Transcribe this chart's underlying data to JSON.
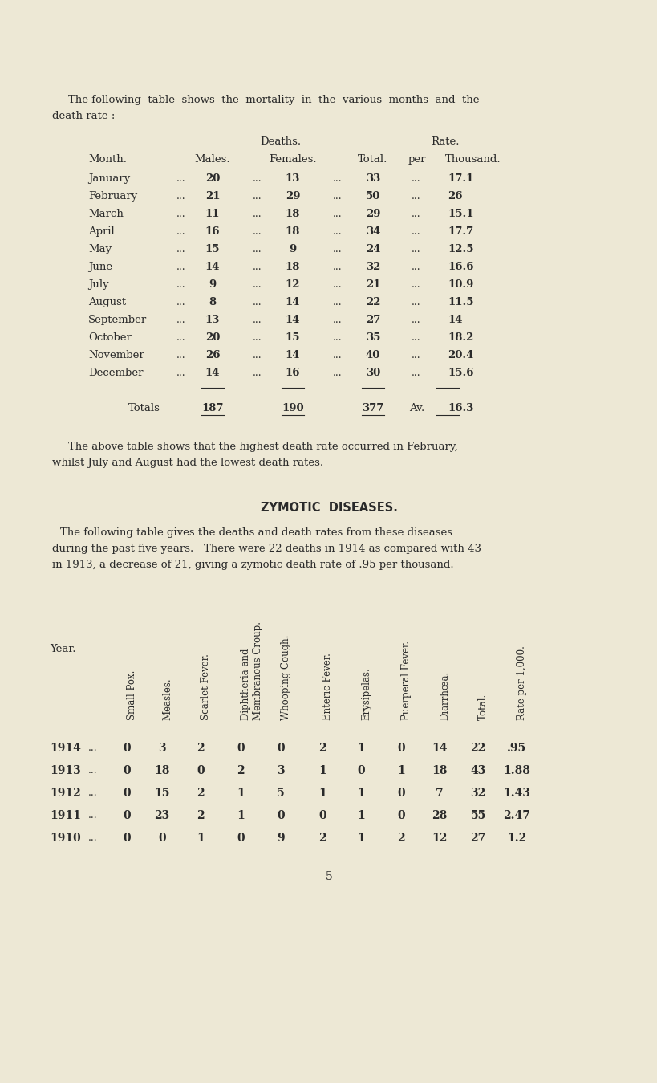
{
  "bg_color": "#ede8d5",
  "text_color": "#2a2a2a",
  "page_width": 8.0,
  "page_height": 13.3,
  "intro_line1": "The following  table  shows  the  mortality  in  the  various  months  and  the",
  "intro_line2": "death rate :—",
  "monthly_data": [
    [
      "January",
      "20",
      "13",
      "33",
      "17.1"
    ],
    [
      "February",
      "21",
      "29",
      "50",
      "26"
    ],
    [
      "March",
      "11",
      "18",
      "29",
      "15.1"
    ],
    [
      "April",
      "16",
      "18",
      "34",
      "17.7"
    ],
    [
      "May",
      "15",
      "9",
      "24",
      "12.5"
    ],
    [
      "June",
      "14",
      "18",
      "32",
      "16.6"
    ],
    [
      "July",
      "9",
      "12",
      "21",
      "10.9"
    ],
    [
      "August",
      "8",
      "14",
      "22",
      "11.5"
    ],
    [
      "September",
      "13",
      "14",
      "27",
      "14"
    ],
    [
      "October",
      "20",
      "15",
      "35",
      "18.2"
    ],
    [
      "November",
      "26",
      "14",
      "40",
      "20.4"
    ],
    [
      "December",
      "14",
      "16",
      "30",
      "15.6"
    ]
  ],
  "totals_males": "187",
  "totals_females": "190",
  "totals_total": "377",
  "totals_rate": "16.3",
  "para2_line1": "The above table shows that the highest death rate occurred in February,",
  "para2_line2": "whilst July and August had the lowest death rates.",
  "zymotic_heading": "ZYMOTIC  DISEASES.",
  "para3_line1": "The following table gives the deaths and death rates from these diseases",
  "para3_line2": "during the past five years.   There were 22 deaths in 1914 as compared with 43",
  "para3_line3": "in 1913, a decrease of 21, giving a zymotic death rate of .95 per thousand.",
  "zy_col_labels": [
    "Small Pox.",
    "Measles.",
    "Scarlet Fever.",
    "Diphtheria and\nMembranous Croup.",
    "Whooping Cough.",
    "Enteric Fever.",
    "Erysipelas.",
    "Puerperal Fever.",
    "Diarrhœa.",
    "Total.",
    "Rate per 1,000."
  ],
  "zy_data": [
    [
      "1914",
      "0",
      "3",
      "2",
      "0",
      "0",
      "2",
      "1",
      "0",
      "14",
      "22",
      ".95"
    ],
    [
      "1913",
      "0",
      "18",
      "0",
      "2",
      "3",
      "1",
      "0",
      "1",
      "18",
      "43",
      "1.88"
    ],
    [
      "1912",
      "0",
      "15",
      "2",
      "1",
      "5",
      "1",
      "1",
      "0",
      "7",
      "32",
      "1.43"
    ],
    [
      "1911",
      "0",
      "23",
      "2",
      "1",
      "0",
      "0",
      "1",
      "0",
      "28",
      "55",
      "2.47"
    ],
    [
      "1910",
      "0",
      "0",
      "1",
      "0",
      "9",
      "2",
      "1",
      "2",
      "12",
      "27",
      "1.2"
    ]
  ],
  "page_number": "5"
}
